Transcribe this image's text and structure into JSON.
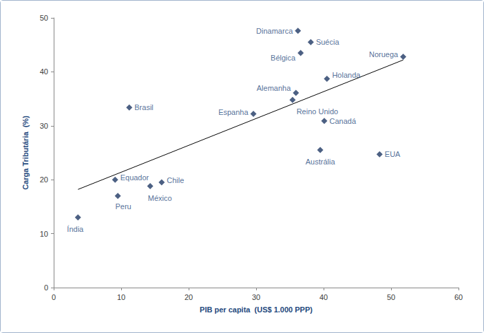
{
  "chart_data": {
    "type": "scatter",
    "x_label": "PIB per capita  (US$ 1.000 PPP)",
    "y_label": "Carga Tributária  (%)",
    "labels": [
      "Índia",
      "Equador",
      "Peru",
      "Brasil",
      "México",
      "Chile",
      "Espanha",
      "Reino Unido",
      "Alemanha",
      "Dinamarca",
      "Bélgica",
      "Suécia",
      "Austrália",
      "Canadá",
      "Holanda",
      "EUA",
      "Noruega"
    ],
    "x": [
      3.6,
      9.1,
      9.5,
      11.2,
      14.3,
      16.0,
      29.6,
      35.4,
      35.9,
      36.2,
      36.6,
      38.1,
      39.5,
      40.1,
      40.5,
      48.3,
      51.8
    ],
    "values": [
      13.0,
      20.0,
      17.0,
      33.4,
      18.8,
      19.5,
      32.2,
      34.8,
      36.1,
      47.6,
      43.5,
      45.5,
      25.5,
      30.9,
      38.7,
      24.7,
      42.8
    ],
    "color": "#1f3864",
    "marker": "diamond",
    "trend_line": {
      "x": [
        3.6,
        51.8
      ],
      "y": [
        18.2,
        42.2
      ],
      "color": "#000000"
    },
    "xlim": [
      0,
      60
    ],
    "xticks": [
      0,
      10,
      20,
      30,
      40,
      50,
      60
    ],
    "ylim": [
      0,
      50
    ],
    "yticks": [
      0,
      10,
      20,
      30,
      40,
      50
    ],
    "grid": false
  }
}
